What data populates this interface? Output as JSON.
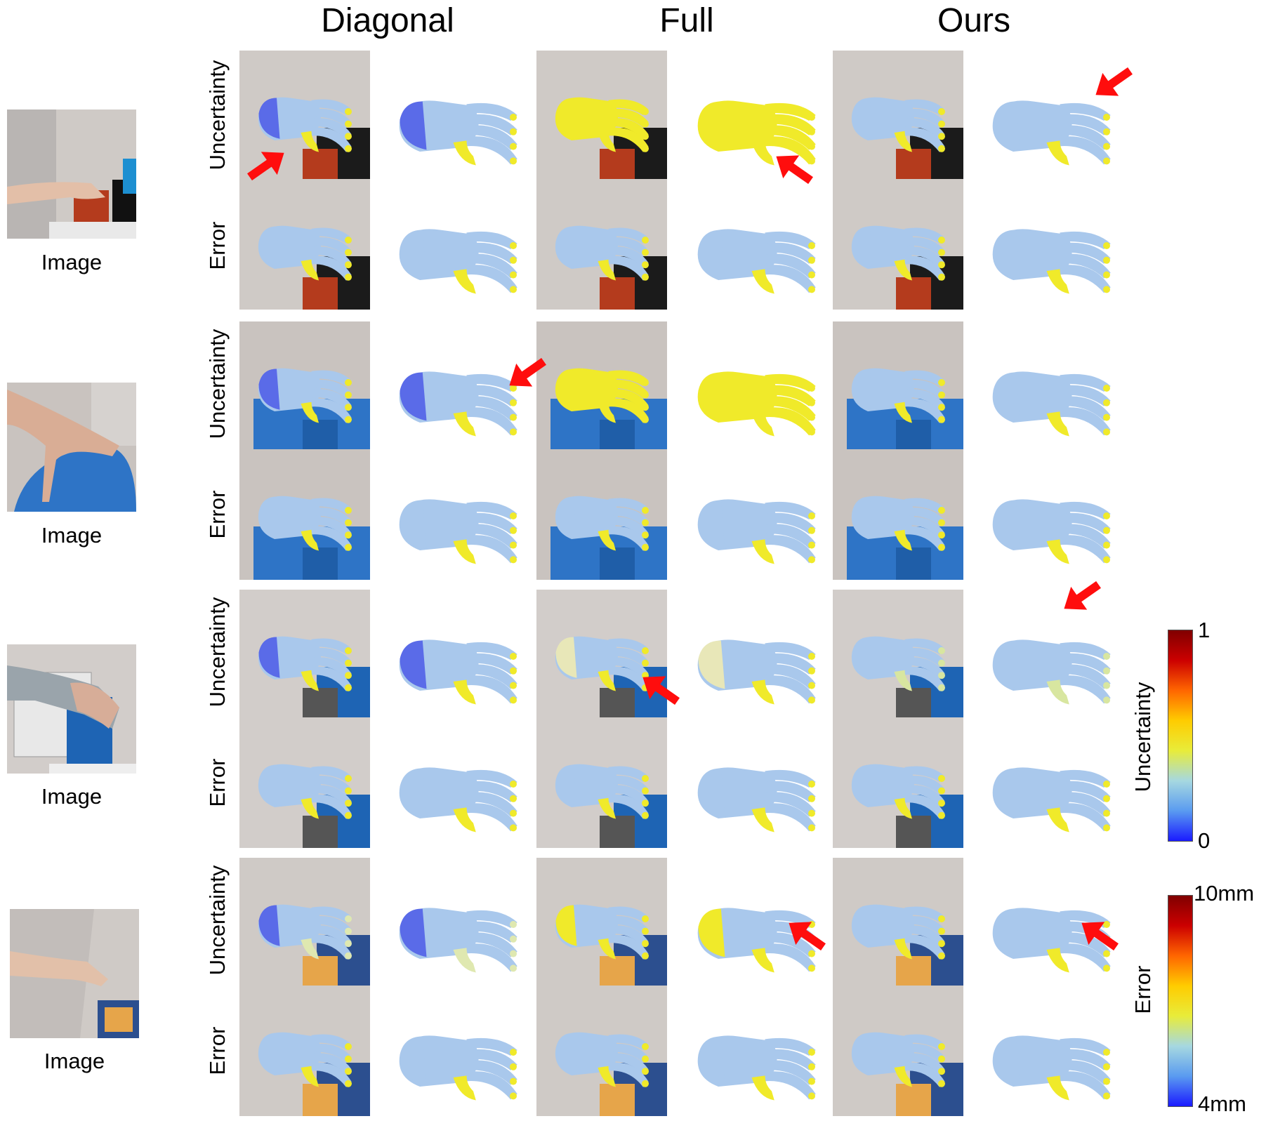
{
  "columns": [
    "Diagonal",
    "Full",
    "Ours"
  ],
  "input_caption": "Image",
  "row_labels": {
    "uncertainty": "Uncertainty",
    "error": "Error"
  },
  "colorbars": {
    "uncertainty": {
      "name": "Uncertainty",
      "max": "1",
      "min": "0"
    },
    "error": {
      "name": "Error",
      "max": "10mm",
      "min": "4mm"
    }
  },
  "colors": {
    "low": "#5a6be8",
    "mid": "#a9c8ec",
    "high": "#f0ea2a",
    "arrow": "#ff0d0d"
  }
}
